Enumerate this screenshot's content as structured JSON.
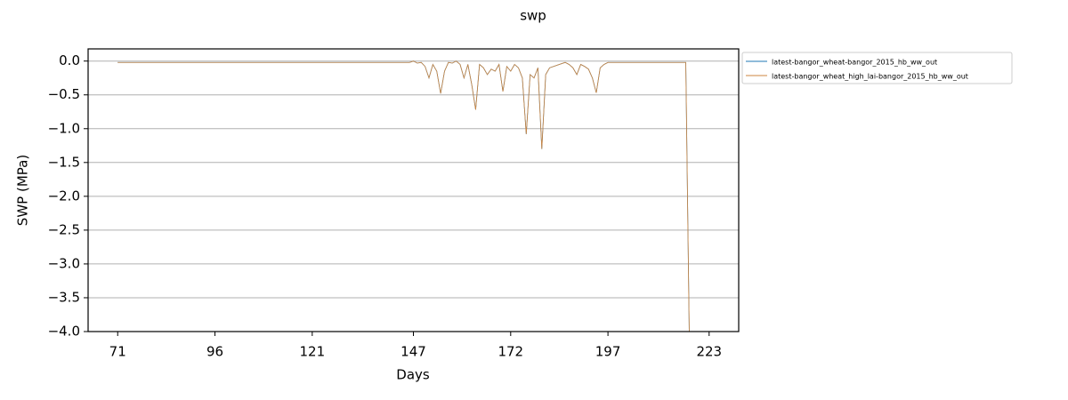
{
  "chart_data": {
    "type": "line",
    "title": "swp",
    "x_label": "Days",
    "y_label": "SWP (MPa)",
    "x": [
      71,
      146,
      147,
      148,
      149,
      150,
      151,
      152,
      153,
      154,
      155,
      156,
      157,
      158,
      159,
      160,
      161,
      162,
      163,
      164,
      165,
      166,
      167,
      168,
      169,
      170,
      171,
      172,
      173,
      174,
      175,
      176,
      177,
      178,
      179,
      180,
      181,
      182,
      186,
      187,
      188,
      189,
      190,
      191,
      192,
      193,
      194,
      195,
      196,
      197,
      217,
      218
    ],
    "series": [
      {
        "name": "latest-bangor_wheat-bangor_2015_hb_ww_out",
        "color": "#1f77b4",
        "values": [
          -0.02,
          -0.02,
          0,
          -0.03,
          -0.02,
          -0.08,
          -0.25,
          -0.05,
          -0.15,
          -0.48,
          -0.15,
          -0.02,
          -0.03,
          0,
          -0.05,
          -0.25,
          -0.05,
          -0.35,
          -0.72,
          -0.05,
          -0.1,
          -0.2,
          -0.12,
          -0.15,
          -0.05,
          -0.45,
          -0.08,
          -0.15,
          -0.05,
          -0.1,
          -0.25,
          -1.08,
          -0.2,
          -0.25,
          -0.1,
          -1.3,
          -0.2,
          -0.1,
          -0.02,
          -0.05,
          -0.1,
          -0.2,
          -0.05,
          -0.08,
          -0.12,
          -0.25,
          -0.47,
          -0.1,
          -0.05,
          -0.02,
          -0.02,
          -4.5
        ]
      },
      {
        "name": "latest-bangor_wheat_high_lai-bangor_2015_hb_ww_out",
        "color": "#cd853f",
        "values": [
          -0.02,
          -0.02,
          0,
          -0.03,
          -0.02,
          -0.08,
          -0.25,
          -0.05,
          -0.15,
          -0.48,
          -0.15,
          -0.02,
          -0.03,
          0,
          -0.05,
          -0.25,
          -0.05,
          -0.35,
          -0.72,
          -0.05,
          -0.1,
          -0.2,
          -0.12,
          -0.15,
          -0.05,
          -0.45,
          -0.08,
          -0.15,
          -0.05,
          -0.1,
          -0.25,
          -1.08,
          -0.2,
          -0.25,
          -0.1,
          -1.3,
          -0.2,
          -0.1,
          -0.02,
          -0.05,
          -0.1,
          -0.2,
          -0.05,
          -0.08,
          -0.12,
          -0.25,
          -0.47,
          -0.1,
          -0.05,
          -0.02,
          -0.02,
          -4.5
        ]
      }
    ],
    "xlim": [
      63.4,
      230.6
    ],
    "xticks": [
      71,
      96,
      121,
      147,
      172,
      197,
      223
    ],
    "ylim": [
      -4,
      0.18
    ],
    "yticks": [
      {
        "value": -4,
        "label": "−4.0"
      },
      {
        "value": -3.5,
        "label": "−3.5"
      },
      {
        "value": -3,
        "label": "−3.0"
      },
      {
        "value": -2.5,
        "label": "−2.5"
      },
      {
        "value": -2,
        "label": "−2.0"
      },
      {
        "value": -1.5,
        "label": "−1.5"
      },
      {
        "value": -1,
        "label": "−1.0"
      },
      {
        "value": -0.5,
        "label": "−0.5"
      },
      {
        "value": 0,
        "label": "0.0"
      }
    ],
    "grid": "y",
    "legend": "outside-upper-right"
  }
}
